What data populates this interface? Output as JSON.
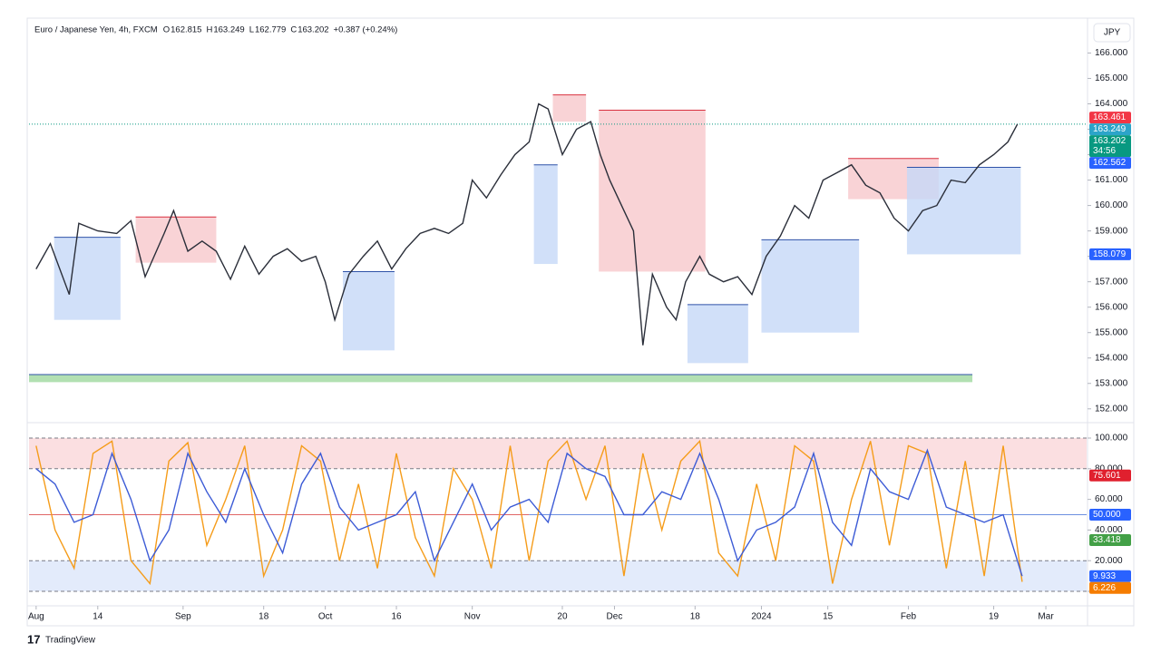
{
  "chart_data": [
    {
      "type": "line",
      "title": "Euro / Japanese Yen, 4h, FXCM",
      "ohlc": [
        {
          "label": "O",
          "value": 162.815
        },
        {
          "label": "H",
          "value": 163.249
        },
        {
          "label": "L",
          "value": 162.779
        },
        {
          "label": "C",
          "value": 163.202
        }
      ],
      "change": "+0.387 (+0.24%)",
      "currency": "JPY",
      "x": [
        0,
        3,
        7,
        9,
        13,
        17,
        20,
        23,
        27,
        29,
        32,
        35,
        38,
        41,
        44,
        47,
        50,
        53,
        56,
        59,
        61,
        63,
        66,
        69,
        72,
        75,
        78,
        81,
        84,
        87,
        90,
        92,
        95,
        98,
        101,
        104,
        106,
        108,
        111,
        114,
        117,
        119,
        121,
        124,
        126,
        128,
        130,
        133,
        135,
        137,
        140,
        142,
        145,
        148,
        151,
        154,
        157,
        160,
        163,
        166,
        169,
        172,
        175,
        178,
        181,
        184,
        187,
        190,
        193,
        196,
        199,
        202,
        205,
        207
      ],
      "series": [
        {
          "color": "#2a2e39",
          "values": [
            157.5,
            158.5,
            156.5,
            159.3,
            159.0,
            158.9,
            159.4,
            157.2,
            158.9,
            159.8,
            158.2,
            158.6,
            158.2,
            157.1,
            158.4,
            157.3,
            158.0,
            158.3,
            157.8,
            158.0,
            157.0,
            155.5,
            157.3,
            158.0,
            158.6,
            157.5,
            158.3,
            158.9,
            159.1,
            158.9,
            159.3,
            161.0,
            160.3,
            161.2,
            162.0,
            162.5,
            164.0,
            163.8,
            162.0,
            163.0,
            163.3,
            162.0,
            161.0,
            159.8,
            159.0,
            154.5,
            157.3,
            156.0,
            155.5,
            157.0,
            158.0,
            157.3,
            157.0,
            157.2,
            156.5,
            158.0,
            158.8,
            160.0,
            159.5,
            161.0,
            161.3,
            161.6,
            160.8,
            160.5,
            159.5,
            159.0,
            159.8,
            160.0,
            161.0,
            160.9,
            161.6,
            162.0,
            162.5,
            163.2
          ]
        }
      ],
      "zones": [
        {
          "x0": 109,
          "x1": 116,
          "top": 164.35,
          "bottom": 163.3,
          "color": "#f8c8cc"
        },
        {
          "x0": 105,
          "x1": 110,
          "top": 161.6,
          "bottom": 157.7,
          "color": "#c6d8f7"
        },
        {
          "x0": 118.7,
          "x1": 141.2,
          "top": 163.75,
          "bottom": 157.4,
          "color": "#f8c8cc"
        },
        {
          "x0": 137.4,
          "x1": 150.2,
          "top": 156.1,
          "bottom": 153.8,
          "color": "#c6d8f7"
        },
        {
          "x0": 171.3,
          "x1": 190.4,
          "top": 161.85,
          "bottom": 160.25,
          "color": "#f8c8cc"
        },
        {
          "x0": 183.7,
          "x1": 207.7,
          "top": 161.5,
          "bottom": 158.079,
          "color": "#c6d8f7"
        },
        {
          "x0": 153,
          "x1": 173.6,
          "top": 158.65,
          "bottom": 155.0,
          "color": "#c6d8f7"
        },
        {
          "x0": 64.7,
          "x1": 75.6,
          "top": 157.4,
          "bottom": 154.3,
          "color": "#c6d8f7"
        },
        {
          "x0": 3.8,
          "x1": 17.8,
          "top": 158.75,
          "bottom": 155.5,
          "color": "#c6d8f7"
        },
        {
          "x0": 21,
          "x1": 38,
          "top": 159.55,
          "bottom": 157.75,
          "color": "#f8c8cc"
        },
        {
          "x0": -1.5,
          "x1": 197.5,
          "top": 153.35,
          "bottom": 153.05,
          "color": "#9fd89f"
        }
      ],
      "tags": [
        {
          "value": 163.461,
          "color": "#f23645"
        },
        {
          "value": 163.249,
          "color": "#2ca4c9"
        },
        {
          "value": 163.202,
          "color": "#089981",
          "countdown": "34:56"
        },
        {
          "value": 162.562,
          "color": "#2962ff"
        },
        {
          "value": 158.079,
          "color": "#2962ff"
        }
      ],
      "last_price": 163.202,
      "xlim": [
        -1.5,
        221.6
      ],
      "ylim": [
        151.6,
        167.3
      ],
      "yticks": [
        {
          "value": 152,
          "label": "152.000"
        },
        {
          "value": 153,
          "label": "153.000"
        },
        {
          "value": 154,
          "label": "154.000"
        },
        {
          "value": 155,
          "label": "155.000"
        },
        {
          "value": 156,
          "label": "156.000"
        },
        {
          "value": 157,
          "label": "157.000"
        },
        {
          "value": 158,
          "label": "158.000"
        },
        {
          "value": 159,
          "label": "159.000"
        },
        {
          "value": 160,
          "label": "160.000"
        },
        {
          "value": 161,
          "label": "161.000"
        },
        {
          "value": 162,
          "label": "162.000"
        },
        {
          "value": 163,
          "label": "163.000"
        },
        {
          "value": 164,
          "label": "164.000"
        },
        {
          "value": 165,
          "label": "165.000"
        },
        {
          "value": 166,
          "label": "166.000"
        }
      ]
    },
    {
      "type": "line",
      "x": [
        0,
        4,
        8,
        12,
        16,
        20,
        24,
        28,
        32,
        36,
        40,
        44,
        48,
        52,
        56,
        60,
        64,
        68,
        72,
        76,
        80,
        84,
        88,
        92,
        96,
        100,
        104,
        108,
        112,
        116,
        120,
        124,
        128,
        132,
        136,
        140,
        144,
        148,
        152,
        156,
        160,
        164,
        168,
        172,
        176,
        180,
        184,
        188,
        192,
        196,
        200,
        204,
        208
      ],
      "series": [
        {
          "color": "#f59c1a",
          "values": [
            95,
            40,
            15,
            90,
            98,
            20,
            5,
            85,
            97,
            30,
            60,
            95,
            10,
            40,
            95,
            85,
            20,
            70,
            15,
            90,
            35,
            10,
            80,
            60,
            15,
            95,
            20,
            85,
            98,
            60,
            95,
            10,
            90,
            40,
            85,
            98,
            25,
            10,
            70,
            20,
            95,
            85,
            5,
            60,
            98,
            30,
            95,
            90,
            15,
            85,
            10,
            95,
            6.226
          ]
        },
        {
          "color": "#3c5bd6",
          "values": [
            80,
            70,
            45,
            50,
            90,
            60,
            20,
            40,
            90,
            65,
            45,
            80,
            50,
            25,
            70,
            90,
            55,
            40,
            45,
            50,
            65,
            20,
            45,
            70,
            40,
            55,
            60,
            45,
            90,
            80,
            75,
            50,
            50,
            65,
            60,
            90,
            60,
            20,
            40,
            45,
            55,
            90,
            45,
            30,
            80,
            65,
            60,
            92,
            55,
            50,
            45,
            50,
            9.933
          ]
        }
      ],
      "bands": [
        {
          "from": 80,
          "to": 100,
          "color": "#fbdfe1"
        },
        {
          "from": 0,
          "to": 20,
          "color": "#e3ebfb"
        }
      ],
      "levels": [
        100,
        80,
        20,
        0
      ],
      "midline": 50,
      "tags": [
        {
          "value": 75.601,
          "label": "75.601",
          "color": "#e0202e"
        },
        {
          "value": 50,
          "label": "50.000",
          "color": "#2962ff"
        },
        {
          "value": 33.418,
          "label": "33.418",
          "color": "#43a047"
        },
        {
          "value": 9.933,
          "label": "9.933",
          "color": "#2962ff"
        },
        {
          "value": 6.226,
          "label": "6.226",
          "color": "#f57c00"
        }
      ],
      "xlim": [
        -1.5,
        221.6
      ],
      "ylim": [
        -7.7,
        107.7
      ],
      "yticks": [
        {
          "value": 0,
          "label": "0.000"
        },
        {
          "value": 20,
          "label": "20.000"
        },
        {
          "value": 40,
          "label": "40.000"
        },
        {
          "value": 60,
          "label": "60.000"
        },
        {
          "value": 80,
          "label": "80.000"
        },
        {
          "value": 100,
          "label": "100.000"
        }
      ],
      "xticks": [
        {
          "value": 0,
          "label": "Aug"
        },
        {
          "value": 13,
          "label": "14"
        },
        {
          "value": 31,
          "label": "Sep"
        },
        {
          "value": 48,
          "label": "18"
        },
        {
          "value": 61,
          "label": "Oct"
        },
        {
          "value": 76,
          "label": "16"
        },
        {
          "value": 92,
          "label": "Nov"
        },
        {
          "value": 111,
          "label": "20"
        },
        {
          "value": 122,
          "label": "Dec"
        },
        {
          "value": 139,
          "label": "18"
        },
        {
          "value": 153,
          "label": "2024"
        },
        {
          "value": 167,
          "label": "15"
        },
        {
          "value": 184,
          "label": "Feb"
        },
        {
          "value": 202,
          "label": "19"
        },
        {
          "value": 213,
          "label": "Mar"
        }
      ]
    }
  ],
  "footer": {
    "brand": "TradingView"
  }
}
